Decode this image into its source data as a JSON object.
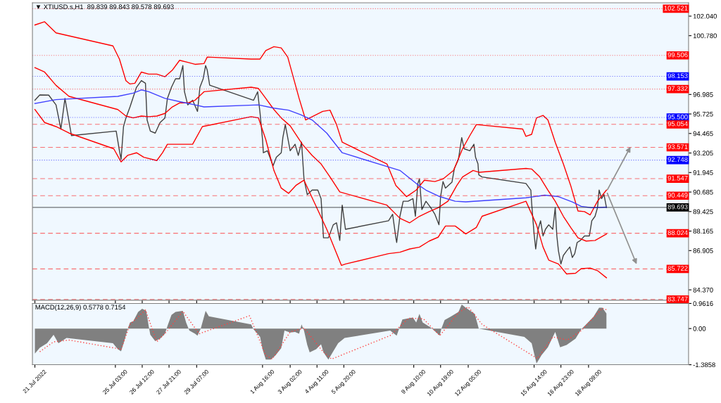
{
  "chart_data": [
    {
      "type": "line",
      "title": "▼ XTIUSD.s,H1  89.839 89.843 89.578 89.693",
      "xlim": [
        "2022-07-20T21:00",
        "2022-08-23T12:00"
      ],
      "ylim": [
        83.7,
        102.9
      ],
      "xticks": [
        {
          "value": "2022-07-21",
          "label": null
        },
        {
          "value": "2022-07-25T03:00",
          "label": null
        },
        {
          "value": "2022-07-26T12:00",
          "label": null
        },
        {
          "value": "2022-07-27T21:00",
          "label": null
        },
        {
          "value": "2022-07-29T07:00",
          "label": null
        },
        {
          "value": "2022-08-01T16:00",
          "label": null
        },
        {
          "value": "2022-08-03T02:00",
          "label": null
        },
        {
          "value": "2022-08-04T11:00",
          "label": null
        },
        {
          "value": "2022-08-05T20:00",
          "label": null
        },
        {
          "value": "2022-08-09T10:00",
          "label": null
        },
        {
          "value": "2022-08-10T19:00",
          "label": null
        },
        {
          "value": "2022-08-12T05:00",
          "label": null
        },
        {
          "value": "2022-08-15T14:00",
          "label": null
        },
        {
          "value": "2022-08-16T23:00",
          "label": null
        },
        {
          "value": "2022-08-18T09:00",
          "label": null
        }
      ],
      "yticks": [
        {
          "value": 102.04,
          "label": "102.040"
        },
        {
          "value": 100.78,
          "label": "100.780"
        },
        96.985,
        95.725,
        94.465,
        93.205,
        91.945,
        90.685,
        89.425,
        88.165,
        86.905,
        {
          "value": 84.37,
          "label": "84.370"
        }
      ],
      "tick_labels": "y",
      "series": [
        {
          "color": "#404040",
          "x": [
            "2022-07-21T00:00",
            "2022-07-21T06:00",
            "2022-07-21T17:00",
            "2022-07-22T02:00",
            "2022-07-22T08:00",
            "2022-07-22T13:00",
            "2022-07-22T21:00",
            "2022-07-25T04:00",
            "2022-07-25T08:00",
            "2022-07-25T10:00",
            "2022-07-25T13:00",
            "2022-07-25T16:00",
            "2022-07-25T21:00",
            "2022-07-26T05:00",
            "2022-07-26T11:00",
            "2022-07-26T16:00",
            "2022-07-26T18:00",
            "2022-07-26T22:00",
            "2022-07-27T04:00",
            "2022-07-27T10:00",
            "2022-07-27T16:00",
            "2022-07-27T19:00",
            "2022-07-28T00:00",
            "2022-07-28T05:00",
            "2022-07-28T10:00",
            "2022-07-28T14:00",
            "2022-07-28T16:00",
            "2022-07-28T20:00",
            "2022-07-29T02:00",
            "2022-07-29T08:00",
            "2022-07-29T11:00",
            "2022-07-29T15:00",
            "2022-07-29T18:00",
            "2022-07-29T20:00",
            "2022-07-29T23:00",
            "2022-08-01T05:00",
            "2022-08-01T10:00",
            "2022-08-01T13:00",
            "2022-08-01T16:00",
            "2022-08-01T17:00",
            "2022-08-01T22:00",
            "2022-08-02T05:00",
            "2022-08-02T09:00",
            "2022-08-02T15:00",
            "2022-08-02T17:00",
            "2022-08-02T20:00",
            "2022-08-03T02:00",
            "2022-08-03T08:00",
            "2022-08-03T12:00",
            "2022-08-03T16:00",
            "2022-08-03T19:00",
            "2022-08-03T23:00",
            "2022-08-04T05:00",
            "2022-08-04T12:00",
            "2022-08-04T16:00",
            "2022-08-04T19:00",
            "2022-08-05T01:00",
            "2022-08-05T07:00",
            "2022-08-05T11:00",
            "2022-08-05T15:00",
            "2022-08-05T18:00",
            "2022-08-05T22:00",
            "2022-08-08T03:00",
            "2022-08-08T08:00",
            "2022-08-08T12:00",
            "2022-08-08T13:00",
            "2022-08-08T17:00",
            "2022-08-08T21:00",
            "2022-08-09T03:00",
            "2022-08-09T09:00",
            "2022-08-09T12:00",
            "2022-08-09T15:00",
            "2022-08-09T17:00",
            "2022-08-09T20:00",
            "2022-08-10T01:00",
            "2022-08-10T07:00",
            "2022-08-10T12:00",
            "2022-08-10T17:00",
            "2022-08-10T19:00",
            "2022-08-10T22:00",
            "2022-08-11T01:00",
            "2022-08-11T09:00",
            "2022-08-11T12:00",
            "2022-08-11T17:00",
            "2022-08-11T21:00",
            "2022-08-12T00:00",
            "2022-08-12T07:00",
            "2022-08-12T12:00",
            "2022-08-12T14:00",
            "2022-08-12T17:00",
            "2022-08-12T18:00",
            "2022-08-12T22:00",
            "2022-08-15T04:00",
            "2022-08-15T10:00",
            "2022-08-15T11:00",
            "2022-08-15T14:00",
            "2022-08-15T16:00",
            "2022-08-15T19:00",
            "2022-08-15T22:00",
            "2022-08-16T01:00",
            "2022-08-16T04:00",
            "2022-08-16T08:00",
            "2022-08-16T13:00",
            "2022-08-16T16:00",
            "2022-08-16T18:00",
            "2022-08-16T20:00",
            "2022-08-16T23:00",
            "2022-08-17T02:00",
            "2022-08-17T06:00",
            "2022-08-17T10:00",
            "2022-08-17T13:00",
            "2022-08-17T16:00",
            "2022-08-17T19:00",
            "2022-08-17T23:00",
            "2022-08-18T04:00",
            "2022-08-18T10:00",
            "2022-08-18T13:00",
            "2022-08-18T17:00",
            "2022-08-18T20:00",
            "2022-08-18T22:00",
            "2022-08-19T01:00",
            "2022-08-19T04:00",
            "2022-08-19T07:00"
          ],
          "values": [
            96.61,
            96.95,
            96.94,
            96.31,
            94.75,
            96.73,
            94.33,
            94.62,
            93.35,
            92.8,
            94.91,
            95.47,
            96.18,
            97.45,
            97.88,
            97.71,
            95.34,
            94.62,
            94.49,
            95.17,
            95.47,
            96.73,
            97.45,
            98.0,
            98.0,
            98.85,
            97.16,
            96.31,
            96.61,
            95.89,
            97.45,
            98.0,
            98.85,
            98.55,
            97.58,
            96.61,
            97.16,
            95.76,
            94.07,
            93.22,
            93.35,
            92.38,
            92.93,
            93.22,
            94.2,
            95.04,
            93.35,
            93.77,
            93.05,
            93.9,
            91.53,
            90.52,
            90.81,
            90.81,
            90.26,
            87.73,
            87.73,
            88.57,
            88.7,
            87.56,
            89.84,
            88.28,
            88.83,
            89.25,
            87.73,
            87.43,
            89.12,
            90.09,
            90.09,
            90.26,
            89.12,
            91.24,
            91.53,
            89.55,
            90.09,
            89.67,
            89.25,
            88.57,
            90.39,
            91.36,
            90.94,
            91.32,
            92.21,
            92.8,
            94.2,
            93.48,
            93.35,
            93.77,
            92.93,
            92.5,
            91.79,
            91.66,
            91.24,
            90.81,
            89.97,
            87.98,
            87.01,
            88.28,
            88.83,
            87.85,
            88.28,
            88.57,
            88.28,
            89.67,
            87.85,
            86.88,
            86.04,
            86.59,
            86.88,
            87.14,
            86.46,
            86.71,
            87.43,
            87.56,
            87.85,
            87.85,
            88.83,
            89.12,
            89.67,
            90.81,
            90.26,
            90.52,
            89.69
          ]
        },
        {
          "color": "#ff0000",
          "x": [
            "2022-07-21T00:00",
            "2022-07-21T12:00",
            "2022-07-22T02:00",
            "2022-07-25T00:00",
            "2022-07-25T08:00",
            "2022-07-25T16:00",
            "2022-07-25T21:00",
            "2022-07-26T03:00",
            "2022-07-26T11:00",
            "2022-07-26T20:00",
            "2022-07-27T06:00",
            "2022-07-27T16:00",
            "2022-07-28T01:00",
            "2022-07-28T10:00",
            "2022-07-28T20:00",
            "2022-07-29T05:00",
            "2022-07-29T16:00",
            "2022-07-29T20:00",
            "2022-08-01T02:00",
            "2022-08-01T13:00",
            "2022-08-01T20:00",
            "2022-08-02T06:00",
            "2022-08-02T15:00",
            "2022-08-02T23:00",
            "2022-08-03T13:00",
            "2022-08-03T21:00",
            "2022-08-04T18:00",
            "2022-08-05T03:00",
            "2022-08-05T11:00",
            "2022-08-05T18:00",
            "2022-08-08T01:00",
            "2022-08-08T12:00",
            "2022-08-09T01:00",
            "2022-08-09T05:00",
            "2022-08-09T13:00",
            "2022-08-09T23:00",
            "2022-08-10T12:00",
            "2022-08-10T22:00",
            "2022-08-11T11:00",
            "2022-08-11T22:00",
            "2022-08-12T07:00",
            "2022-08-12T15:00",
            "2022-08-15T00:00",
            "2022-08-15T04:00",
            "2022-08-15T11:00",
            "2022-08-15T17:00",
            "2022-08-16T01:00",
            "2022-08-16T07:00",
            "2022-08-16T16:00",
            "2022-08-17T02:00",
            "2022-08-17T11:00",
            "2022-08-17T20:00",
            "2022-08-18T04:00",
            "2022-08-18T11:00",
            "2022-08-18T20:00",
            "2022-08-19T07:00"
          ],
          "values": [
            101.47,
            101.68,
            100.96,
            100.12,
            99.27,
            97.87,
            97.66,
            97.71,
            98.43,
            98.3,
            98.3,
            98.13,
            98.55,
            99.19,
            99.06,
            98.93,
            98.98,
            99.4,
            99.27,
            99.27,
            99.82,
            100.07,
            99.99,
            99.4,
            96.73,
            95.34,
            95.89,
            95.97,
            95.04,
            93.9,
            92.5,
            91.11,
            90.39,
            90.52,
            90.81,
            91.45,
            91.36,
            91.53,
            92.08,
            93.48,
            94.33,
            95.04,
            94.75,
            94.28,
            94.41,
            95.47,
            95.63,
            95.34,
            93.9,
            92.5,
            91.11,
            89.46,
            89.42,
            89.21,
            90.09,
            90.81
          ]
        },
        {
          "color": "#ff0000",
          "x": [
            "2022-07-21T00:00",
            "2022-07-21T12:00",
            "2022-07-22T02:00",
            "2022-07-22T18:00",
            "2022-07-25T06:00",
            "2022-07-25T16:00",
            "2022-07-26T01:00",
            "2022-07-26T11:00",
            "2022-07-26T20:00",
            "2022-07-27T06:00",
            "2022-07-27T16:00",
            "2022-07-28T01:00",
            "2022-07-28T10:00",
            "2022-07-28T20:00",
            "2022-07-29T05:00",
            "2022-07-29T16:00",
            "2022-08-01T02:00",
            "2022-08-01T11:00",
            "2022-08-01T20:00",
            "2022-08-02T06:00",
            "2022-08-02T15:00",
            "2022-08-03T02:00",
            "2022-08-03T17:00",
            "2022-08-04T05:00",
            "2022-08-04T16:00",
            "2022-08-05T03:00",
            "2022-08-05T15:00",
            "2022-08-08T01:00",
            "2022-08-08T17:00",
            "2022-08-09T05:00",
            "2022-08-09T17:00",
            "2022-08-10T05:00",
            "2022-08-10T16:00",
            "2022-08-11T04:00",
            "2022-08-11T15:00",
            "2022-08-11T22:00",
            "2022-08-12T11:00",
            "2022-08-12T18:00",
            "2022-08-15T04:00",
            "2022-08-15T11:00",
            "2022-08-15T21:00",
            "2022-08-16T07:00",
            "2022-08-16T16:00",
            "2022-08-17T02:00",
            "2022-08-17T11:00",
            "2022-08-17T20:00",
            "2022-08-18T06:00",
            "2022-08-18T17:00",
            "2022-08-19T07:00"
          ],
          "values": [
            98.72,
            98.43,
            97.57,
            96.86,
            96.01,
            95.59,
            95.47,
            95.59,
            95.55,
            95.59,
            95.76,
            96.18,
            96.44,
            96.44,
            96.61,
            97.16,
            97.45,
            97.37,
            96.73,
            96.01,
            95.47,
            94.96,
            93.77,
            93.05,
            92.5,
            91.66,
            90.69,
            89.84,
            88.99,
            88.7,
            89.12,
            89.42,
            89.67,
            90.09,
            91.11,
            91.66,
            92.08,
            91.96,
            92.21,
            92.17,
            91.66,
            90.81,
            90.09,
            89.12,
            88.4,
            87.73,
            87.52,
            87.56,
            87.98
          ]
        },
        {
          "color": "#ff0000",
          "x": [
            "2022-07-21T00:00",
            "2022-07-21T12:00",
            "2022-07-22T02:00",
            "2022-07-22T18:00",
            "2022-07-25T01:00",
            "2022-07-25T10:00",
            "2022-07-25T18:00",
            "2022-07-26T05:00",
            "2022-07-26T14:00",
            "2022-07-27T06:00",
            "2022-07-27T13:00",
            "2022-07-27T19:00",
            "2022-07-28T10:00",
            "2022-07-29T02:00",
            "2022-07-29T14:00",
            "2022-08-01T02:00",
            "2022-08-01T11:00",
            "2022-08-01T20:00",
            "2022-08-02T06:00",
            "2022-08-02T15:00",
            "2022-08-03T00:00",
            "2022-08-03T09:00",
            "2022-08-03T19:00",
            "2022-08-04T23:00",
            "2022-08-05T17:00",
            "2022-08-05T22:00",
            "2022-08-08T03:00",
            "2022-08-08T17:00",
            "2022-08-09T05:00",
            "2022-08-09T17:00",
            "2022-08-10T05:00",
            "2022-08-10T16:00",
            "2022-08-11T01:00",
            "2022-08-11T13:00",
            "2022-08-12T02:00",
            "2022-08-12T15:00",
            "2022-08-12T22:00",
            "2022-08-15T04:00",
            "2022-08-15T17:00",
            "2022-08-16T01:00",
            "2022-08-16T08:00",
            "2022-08-16T20:00",
            "2022-08-17T06:00",
            "2022-08-17T17:00",
            "2022-08-18T00:00",
            "2022-08-18T11:00",
            "2022-08-18T20:00",
            "2022-08-19T07:00"
          ],
          "values": [
            96.01,
            95.17,
            94.91,
            94.49,
            93.48,
            92.63,
            93.05,
            93.22,
            92.93,
            92.72,
            93.22,
            93.77,
            93.77,
            93.77,
            94.91,
            95.55,
            95.47,
            94.07,
            92.08,
            90.94,
            90.6,
            91.11,
            91.45,
            88.28,
            85.95,
            86.04,
            86.71,
            86.8,
            87.01,
            87.13,
            87.52,
            87.77,
            88.49,
            88.49,
            87.98,
            88.4,
            89.12,
            90.09,
            88.57,
            87.14,
            86.29,
            86.04,
            85.4,
            85.44,
            85.74,
            85.78,
            85.61,
            85.15
          ]
        },
        {
          "color": "#4040ff",
          "x": [
            "2022-07-21T00:00",
            "2022-07-22T02:00",
            "2022-07-25T06:00",
            "2022-07-26T01:00",
            "2022-07-26T11:00",
            "2022-07-26T20:00",
            "2022-07-27T16:00",
            "2022-07-28T10:00",
            "2022-07-29T05:00",
            "2022-07-29T16:00",
            "2022-08-01T11:00",
            "2022-08-02T06:00",
            "2022-08-03T00:00",
            "2022-08-03T15:00",
            "2022-08-04T05:00",
            "2022-08-04T23:00",
            "2022-08-05T18:00",
            "2022-08-08T17:00",
            "2022-08-09T13:00",
            "2022-08-10T01:00",
            "2022-08-10T18:00",
            "2022-08-11T13:00",
            "2022-08-12T02:00",
            "2022-08-15T04:00",
            "2022-08-16T03:00",
            "2022-08-16T20:00",
            "2022-08-17T13:00",
            "2022-08-18T00:00",
            "2022-08-18T13:00",
            "2022-08-19T07:00"
          ],
          "values": [
            96.4,
            96.65,
            96.86,
            97.07,
            97.28,
            97.16,
            96.73,
            96.52,
            96.31,
            96.18,
            96.31,
            96.1,
            95.97,
            95.68,
            95.34,
            94.49,
            93.22,
            92.08,
            91.24,
            90.81,
            90.39,
            90.09,
            90.05,
            90.31,
            90.48,
            90.39,
            90.05,
            89.76,
            89.67,
            89.71
          ]
        }
      ],
      "ref_lines": [
        {
          "axis": "y",
          "value": 102.521,
          "label": "102.521",
          "color": "#ff0000",
          "line_style": "dotted"
        },
        {
          "axis": "y",
          "value": 99.506,
          "label": "99.506",
          "color": "#ff0000",
          "line_style": "dotted"
        },
        {
          "axis": "y",
          "value": 98.153,
          "label": "98.153",
          "color": "#0000ff",
          "line_style": "dotted"
        },
        {
          "axis": "y",
          "value": 97.332,
          "label": "97.332",
          "color": "#ff0000",
          "line_style": "dotted"
        },
        {
          "axis": "y",
          "value": 95.5,
          "label": "95.500",
          "color": "#0000ff",
          "line_style": "dotted"
        },
        {
          "axis": "y",
          "value": 95.054,
          "label": "95.054",
          "color": "#ff0000",
          "line_style": "dashed"
        },
        {
          "axis": "y",
          "value": 93.571,
          "label": "93.571",
          "color": "#ff0000",
          "line_style": "dashed"
        },
        {
          "axis": "y",
          "value": 92.748,
          "label": "92.748",
          "color": "#0000ff",
          "line_style": "dotted"
        },
        {
          "axis": "y",
          "value": 91.547,
          "label": "91.547",
          "color": "#ff0000",
          "line_style": "dashed"
        },
        {
          "axis": "y",
          "value": 90.449,
          "label": "90.449",
          "color": "#ff0000",
          "line_style": "dashed"
        },
        {
          "axis": "y",
          "value": 89.693,
          "label": "89.693",
          "color": "#000000",
          "line_style": "solid"
        },
        {
          "axis": "y",
          "value": 88.024,
          "label": "88.024",
          "color": "#ff0000",
          "line_style": "dashed"
        },
        {
          "axis": "y",
          "value": 85.722,
          "label": "85.722",
          "color": "#ff0000",
          "line_style": "dashed"
        },
        {
          "axis": "y",
          "value": 83.747,
          "label": "83.747",
          "color": "#ff0000",
          "line_style": "dashed"
        }
      ]
    },
    {
      "type": "area",
      "annotations": [
        "MACD(12,26,9) 0.5778 0.7154"
      ],
      "xlim": [
        "2022-07-20T21:00",
        "2022-08-23T12:00"
      ],
      "ylim": [
        -1.3858,
        0.9616
      ],
      "xticks": [
        {
          "value": "2022-07-21",
          "label": "21 Jul 2022"
        },
        {
          "value": "2022-07-25T03:00",
          "label": "25 Jul 03:00"
        },
        {
          "value": "2022-07-26T12:00",
          "label": "26 Jul 12:00"
        },
        {
          "value": "2022-07-27T21:00",
          "label": "27 Jul 21:00"
        },
        {
          "value": "2022-07-29T07:00",
          "label": "29 Jul 07:00"
        },
        {
          "value": "2022-08-01T16:00",
          "label": "1 Aug 16:00"
        },
        {
          "value": "2022-08-03T02:00",
          "label": "3 Aug 02:00"
        },
        {
          "value": "2022-08-04T11:00",
          "label": "4 Aug 11:00"
        },
        {
          "value": "2022-08-05T20:00",
          "label": "5 Aug 20:00"
        },
        {
          "value": "2022-08-09T10:00",
          "label": "9 Aug 10:00"
        },
        {
          "value": "2022-08-10T19:00",
          "label": "10 Aug 19:00"
        },
        {
          "value": "2022-08-12T05:00",
          "label": "12 Aug 05:00"
        },
        {
          "value": "2022-08-15T14:00",
          "label": "15 Aug 14:00"
        },
        {
          "value": "2022-08-16T23:00",
          "label": "16 Aug 23:00"
        },
        {
          "value": "2022-08-18T09:00",
          "label": "18 Aug 09:00"
        }
      ],
      "yticks": [
        0.9616,
        {
          "value": 0,
          "label": "0.00"
        },
        -1.3858
      ],
      "series": [
        {
          "color": "#808080",
          "x": [
            "2022-07-21T00:00",
            "2022-07-21T06:00",
            "2022-07-21T15:00",
            "2022-07-21T23:00",
            "2022-07-22T05:00",
            "2022-07-22T15:00",
            "2022-07-25T00:00",
            "2022-07-25T06:00",
            "2022-07-25T10:00",
            "2022-07-25T14:00",
            "2022-07-25T18:00",
            "2022-07-25T21:00",
            "2022-07-26T01:00",
            "2022-07-26T07:00",
            "2022-07-26T12:00",
            "2022-07-26T17:00",
            "2022-07-26T20:00",
            "2022-07-26T22:00",
            "2022-07-27T04:00",
            "2022-07-27T10:00",
            "2022-07-27T16:00",
            "2022-07-27T19:00",
            "2022-07-28T00:00",
            "2022-07-28T05:00",
            "2022-07-28T14:00",
            "2022-07-28T18:00",
            "2022-07-28T22:00",
            "2022-07-29T05:00",
            "2022-07-29T08:00",
            "2022-07-29T12:00",
            "2022-07-29T18:00",
            "2022-07-29T22:00",
            "2022-08-01T02:00",
            "2022-08-01T05:00",
            "2022-08-01T13:00",
            "2022-08-01T16:00",
            "2022-08-01T20:00",
            "2022-08-02T02:00",
            "2022-08-02T08:00",
            "2022-08-02T15:00",
            "2022-08-02T19:00",
            "2022-08-03T02:00",
            "2022-08-03T08:00",
            "2022-08-03T13:00",
            "2022-08-03T16:00",
            "2022-08-03T19:00",
            "2022-08-03T23:00",
            "2022-08-04T02:00",
            "2022-08-04T10:00",
            "2022-08-04T16:00",
            "2022-08-04T19:00",
            "2022-08-05T01:00",
            "2022-08-05T07:00",
            "2022-08-05T13:00",
            "2022-08-05T21:00",
            "2022-08-08T05:00",
            "2022-08-08T13:00",
            "2022-08-08T20:00",
            "2022-08-09T05:00",
            "2022-08-09T09:00",
            "2022-08-09T13:00",
            "2022-08-09T17:00",
            "2022-08-09T21:00",
            "2022-08-10T07:00",
            "2022-08-10T18:00",
            "2022-08-10T20:00",
            "2022-08-11T00:00",
            "2022-08-11T07:00",
            "2022-08-11T17:00",
            "2022-08-11T21:00",
            "2022-08-12T02:00",
            "2022-08-12T13:00",
            "2022-08-12T18:00",
            "2022-08-15T02:00",
            "2022-08-15T11:00",
            "2022-08-15T17:00",
            "2022-08-15T23:00",
            "2022-08-16T07:00",
            "2022-08-16T16:00",
            "2022-08-16T22:00",
            "2022-08-17T06:00",
            "2022-08-17T17:00",
            "2022-08-18T00:00",
            "2022-08-18T06:00",
            "2022-08-18T15:00",
            "2022-08-18T22:00",
            "2022-08-19T02:00",
            "2022-08-19T07:00"
          ],
          "values": [
            -0.96,
            -0.74,
            -0.56,
            -0.24,
            -0.56,
            -0.36,
            -0.56,
            -0.79,
            -0.87,
            -0.48,
            -0.03,
            0.23,
            0.28,
            0.64,
            0.76,
            0.68,
            0.09,
            -0.24,
            -0.48,
            -0.39,
            -0.2,
            0.09,
            0.52,
            0.64,
            0.68,
            0.23,
            -0.08,
            -0.2,
            -0.27,
            0.0,
            0.68,
            0.47,
            0.16,
            -0.03,
            -0.32,
            -0.79,
            -1.19,
            -1.19,
            -1.03,
            -0.75,
            -0.08,
            -0.15,
            -0.13,
            -0.2,
            0.16,
            -0.08,
            -0.63,
            -0.91,
            -0.79,
            -0.6,
            -0.91,
            -1.19,
            -0.87,
            -0.56,
            -0.36,
            -0.08,
            -0.27,
            0.35,
            0.4,
            0.42,
            0.23,
            0.56,
            0.23,
            0.04,
            -0.27,
            0.0,
            0.33,
            0.45,
            0.64,
            0.92,
            0.8,
            0.56,
            0.0,
            -0.32,
            -0.56,
            -1.34,
            -1.03,
            -0.72,
            -0.13,
            -0.72,
            -0.63,
            -0.39,
            -0.03,
            0.16,
            0.45,
            0.8,
            0.8,
            0.58
          ]
        },
        {
          "type": "line",
          "color": "#ff4040",
          "line_style": "dotted",
          "x": [
            "2022-07-21T06:00",
            "2022-07-21T23:00",
            "2022-07-22T18:00",
            "2022-07-25T10:00",
            "2022-07-25T21:00",
            "2022-07-26T16:00",
            "2022-07-27T06:00",
            "2022-07-27T19:00",
            "2022-07-28T14:00",
            "2022-07-29T10:00",
            "2022-08-01T00:00",
            "2022-08-01T20:00",
            "2022-08-02T04:00",
            "2022-08-03T02:00",
            "2022-08-03T19:00",
            "2022-08-04T18:00",
            "2022-08-05T05:00",
            "2022-08-08T05:00",
            "2022-08-09T04:00",
            "2022-08-09T22:00",
            "2022-08-10T18:00",
            "2022-08-11T17:00",
            "2022-08-12T05:00",
            "2022-08-12T22:00",
            "2022-08-15T18:00",
            "2022-08-16T13:00",
            "2022-08-17T07:00",
            "2022-08-18T00:00",
            "2022-08-18T16:00",
            "2022-08-19T02:00",
            "2022-08-19T07:00"
          ],
          "values": [
            -0.89,
            -0.51,
            -0.44,
            -0.79,
            0.16,
            0.71,
            -0.51,
            -0.08,
            0.66,
            -0.2,
            0.49,
            -1.03,
            -1.17,
            -0.13,
            0.02,
            -0.87,
            -1.17,
            -0.27,
            0.4,
            0.37,
            -0.27,
            0.61,
            0.83,
            0.16,
            -1.15,
            -0.32,
            -0.44,
            -0.08,
            0.45,
            0.78,
            0.72
          ]
        }
      ]
    }
  ]
}
